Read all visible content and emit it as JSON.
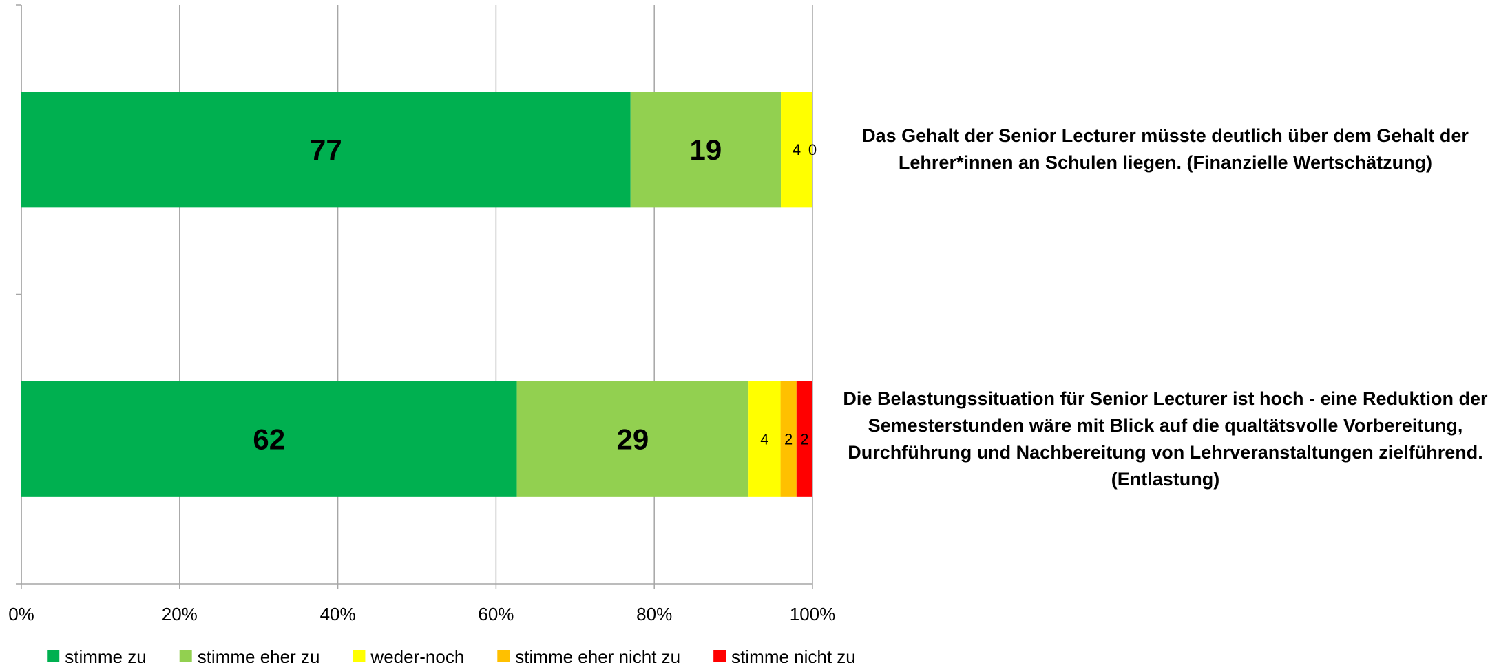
{
  "chart_data": {
    "type": "stacked_bar_100",
    "orientation": "horizontal",
    "categories": [
      "Das Gehalt der Senior Lecturer müsste deutlich über dem Gehalt der Lehrer*innen an Schulen liegen. (Finanzielle Wertschätzung)",
      "Die Belastungssituation für Senior Lecturer ist hoch - eine Reduktion der Semesterstunden wäre mit Blick auf die qualtätsvolle Vorbereitung, Durchführung und Nachbereitung von Lehrveranstaltungen zielführend. (Entlastung)"
    ],
    "series": [
      {
        "name": "stimme zu",
        "color": "#00b050",
        "values": [
          77,
          62
        ]
      },
      {
        "name": "stimme eher zu",
        "color": "#92d050",
        "values": [
          19,
          29
        ]
      },
      {
        "name": "weder-noch",
        "color": "#ffff00",
        "values": [
          4,
          4
        ]
      },
      {
        "name": "stimme eher nicht zu",
        "color": "#ffc000",
        "values": [
          0,
          2
        ]
      },
      {
        "name": "stimme nicht zu",
        "color": "#ff0000",
        "values": [
          null,
          2
        ]
      }
    ],
    "xlim": [
      0,
      100
    ],
    "xticks": [
      {
        "value": 0,
        "label": "0%"
      },
      {
        "value": 20,
        "label": "20%"
      },
      {
        "value": 40,
        "label": "40%"
      },
      {
        "value": 60,
        "label": "60%"
      },
      {
        "value": 80,
        "label": "80%"
      },
      {
        "value": 100,
        "label": "100%"
      }
    ],
    "grid": true,
    "legend": "bottom"
  }
}
